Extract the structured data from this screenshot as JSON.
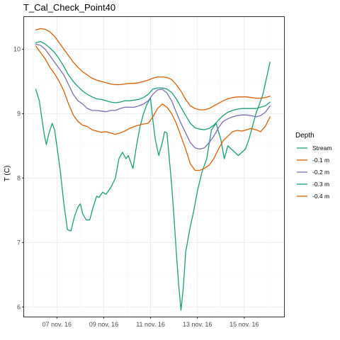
{
  "chart_data": {
    "type": "line",
    "title": "T_Cal_Check_Point40",
    "xlabel": "",
    "ylabel": "T (C)",
    "x_unit": "days (Nov 2016)",
    "xlim": [
      5.6,
      16.7
    ],
    "ylim": [
      5.85,
      10.5
    ],
    "x_ticks": [
      {
        "value": 7,
        "label": "07 nov. 16"
      },
      {
        "value": 9,
        "label": "09 nov. 16"
      },
      {
        "value": 11,
        "label": "11 nov. 16"
      },
      {
        "value": 13,
        "label": "13 nov. 16"
      },
      {
        "value": 15,
        "label": "15 nov. 16"
      }
    ],
    "y_ticks": [
      6,
      7,
      8,
      9,
      10
    ],
    "grid": true,
    "legend": {
      "title": "Depth",
      "position": "right"
    },
    "series": [
      {
        "name": "Stream",
        "color": "#1b9e77",
        "x": [
          6.1,
          6.25,
          6.35,
          6.45,
          6.55,
          6.65,
          6.8,
          6.9,
          7.0,
          7.15,
          7.3,
          7.45,
          7.6,
          7.75,
          7.9,
          8.0,
          8.1,
          8.25,
          8.4,
          8.55,
          8.7,
          8.8,
          8.95,
          9.1,
          9.3,
          9.5,
          9.65,
          9.8,
          9.95,
          10.05,
          10.15,
          10.25,
          10.4,
          10.55,
          10.7,
          10.85,
          11.0,
          11.1,
          11.2,
          11.35,
          11.5,
          11.6,
          11.7,
          11.8,
          11.9,
          12.0,
          12.1,
          12.2,
          12.3,
          12.4,
          12.5,
          12.6,
          12.7,
          12.85,
          13.0,
          13.2,
          13.4,
          13.6,
          13.8,
          14.0,
          14.15,
          14.3,
          14.45,
          14.6,
          14.75,
          14.9,
          15.05,
          15.2,
          15.35,
          15.5,
          15.65,
          15.8,
          15.95,
          16.1
        ],
        "y": [
          9.38,
          9.2,
          8.95,
          8.7,
          8.52,
          8.68,
          8.85,
          8.75,
          8.5,
          8.1,
          7.6,
          7.2,
          7.18,
          7.4,
          7.55,
          7.6,
          7.45,
          7.35,
          7.35,
          7.55,
          7.72,
          7.7,
          7.78,
          7.75,
          7.85,
          8.0,
          8.3,
          8.4,
          8.3,
          8.35,
          8.25,
          8.15,
          8.5,
          8.8,
          9.0,
          9.15,
          9.24,
          8.9,
          8.6,
          8.35,
          8.55,
          8.72,
          8.7,
          8.3,
          7.9,
          7.4,
          6.85,
          6.35,
          5.95,
          6.3,
          6.85,
          7.05,
          7.25,
          7.5,
          7.8,
          8.1,
          8.3,
          8.75,
          8.85,
          8.6,
          8.3,
          8.5,
          8.45,
          8.4,
          8.35,
          8.4,
          8.45,
          8.6,
          8.8,
          9.0,
          9.15,
          9.3,
          9.55,
          9.8
        ]
      },
      {
        "name": "-0.1 m",
        "color": "#d95f02",
        "x": [
          6.1,
          6.3,
          6.5,
          6.7,
          6.9,
          7.1,
          7.3,
          7.5,
          7.7,
          7.9,
          8.1,
          8.3,
          8.5,
          8.7,
          8.9,
          9.1,
          9.3,
          9.5,
          9.7,
          9.9,
          10.1,
          10.3,
          10.5,
          10.7,
          10.9,
          11.1,
          11.3,
          11.5,
          11.7,
          11.9,
          12.1,
          12.3,
          12.5,
          12.7,
          12.9,
          13.1,
          13.3,
          13.5,
          13.7,
          13.9,
          14.1,
          14.3,
          14.5,
          14.7,
          14.9,
          15.1,
          15.3,
          15.5,
          15.7,
          15.9,
          16.1
        ],
        "y": [
          10.05,
          9.95,
          9.85,
          9.72,
          9.62,
          9.5,
          9.35,
          9.15,
          8.98,
          8.88,
          8.82,
          8.8,
          8.75,
          8.73,
          8.71,
          8.72,
          8.7,
          8.68,
          8.7,
          8.73,
          8.77,
          8.8,
          8.82,
          8.84,
          8.85,
          8.95,
          9.08,
          9.15,
          9.1,
          9.0,
          8.85,
          8.65,
          8.45,
          8.22,
          8.12,
          8.12,
          8.15,
          8.2,
          8.3,
          8.45,
          8.58,
          8.65,
          8.72,
          8.74,
          8.73,
          8.75,
          8.77,
          8.75,
          8.72,
          8.8,
          8.95
        ]
      },
      {
        "name": "-0.2 m",
        "color": "#7570b3",
        "x": [
          6.1,
          6.3,
          6.5,
          6.7,
          6.9,
          7.1,
          7.3,
          7.5,
          7.7,
          7.9,
          8.1,
          8.3,
          8.5,
          8.7,
          8.9,
          9.1,
          9.3,
          9.5,
          9.7,
          9.9,
          10.1,
          10.3,
          10.5,
          10.7,
          10.9,
          11.1,
          11.3,
          11.5,
          11.7,
          11.9,
          12.1,
          12.3,
          12.5,
          12.7,
          12.9,
          13.1,
          13.3,
          13.5,
          13.7,
          13.9,
          14.1,
          14.3,
          14.5,
          14.7,
          14.9,
          15.1,
          15.3,
          15.5,
          15.7,
          15.9,
          16.1
        ],
        "y": [
          10.08,
          10.06,
          10.0,
          9.9,
          9.8,
          9.7,
          9.6,
          9.45,
          9.3,
          9.2,
          9.15,
          9.08,
          9.05,
          9.05,
          9.04,
          9.03,
          9.05,
          9.05,
          9.08,
          9.1,
          9.1,
          9.1,
          9.12,
          9.15,
          9.2,
          9.3,
          9.37,
          9.38,
          9.32,
          9.2,
          9.02,
          8.85,
          8.7,
          8.55,
          8.47,
          8.45,
          8.47,
          8.55,
          8.65,
          8.78,
          8.88,
          8.92,
          8.95,
          8.97,
          8.98,
          8.98,
          8.97,
          8.95,
          8.97,
          9.02,
          9.12
        ]
      },
      {
        "name": "-0.3 m",
        "color": "#1b9e77",
        "x": [
          6.1,
          6.3,
          6.5,
          6.7,
          6.9,
          7.1,
          7.3,
          7.5,
          7.7,
          7.9,
          8.1,
          8.3,
          8.5,
          8.7,
          8.9,
          9.1,
          9.3,
          9.5,
          9.7,
          9.9,
          10.1,
          10.3,
          10.5,
          10.7,
          10.9,
          11.1,
          11.3,
          11.5,
          11.7,
          11.9,
          12.1,
          12.3,
          12.5,
          12.7,
          12.9,
          13.1,
          13.3,
          13.5,
          13.7,
          13.9,
          14.1,
          14.3,
          14.5,
          14.7,
          14.9,
          15.1,
          15.3,
          15.5,
          15.7,
          15.9,
          16.1
        ],
        "y": [
          10.1,
          10.12,
          10.08,
          10.02,
          9.95,
          9.85,
          9.73,
          9.6,
          9.5,
          9.42,
          9.35,
          9.3,
          9.26,
          9.23,
          9.22,
          9.2,
          9.18,
          9.17,
          9.18,
          9.2,
          9.2,
          9.21,
          9.22,
          9.25,
          9.3,
          9.38,
          9.4,
          9.4,
          9.38,
          9.33,
          9.23,
          9.1,
          8.97,
          8.85,
          8.78,
          8.76,
          8.75,
          8.77,
          8.82,
          8.9,
          8.97,
          9.02,
          9.05,
          9.07,
          9.08,
          9.08,
          9.08,
          9.08,
          9.1,
          9.12,
          9.18
        ]
      },
      {
        "name": "-0.4 m",
        "color": "#d95f02",
        "x": [
          6.1,
          6.3,
          6.5,
          6.7,
          6.9,
          7.1,
          7.3,
          7.5,
          7.7,
          7.9,
          8.1,
          8.3,
          8.5,
          8.7,
          8.9,
          9.1,
          9.3,
          9.5,
          9.7,
          9.9,
          10.1,
          10.3,
          10.5,
          10.7,
          10.9,
          11.1,
          11.3,
          11.5,
          11.7,
          11.9,
          12.1,
          12.3,
          12.5,
          12.7,
          12.9,
          13.1,
          13.3,
          13.5,
          13.7,
          13.9,
          14.1,
          14.3,
          14.5,
          14.7,
          14.9,
          15.1,
          15.3,
          15.5,
          15.7,
          15.9,
          16.1
        ],
        "y": [
          10.3,
          10.32,
          10.31,
          10.27,
          10.2,
          10.1,
          10.0,
          9.9,
          9.8,
          9.72,
          9.65,
          9.6,
          9.55,
          9.52,
          9.5,
          9.48,
          9.46,
          9.45,
          9.45,
          9.46,
          9.47,
          9.47,
          9.48,
          9.5,
          9.52,
          9.55,
          9.57,
          9.57,
          9.56,
          9.53,
          9.45,
          9.35,
          9.22,
          9.12,
          9.08,
          9.06,
          9.06,
          9.08,
          9.12,
          9.16,
          9.2,
          9.23,
          9.25,
          9.26,
          9.26,
          9.26,
          9.25,
          9.24,
          9.24,
          9.25,
          9.27
        ]
      }
    ]
  }
}
